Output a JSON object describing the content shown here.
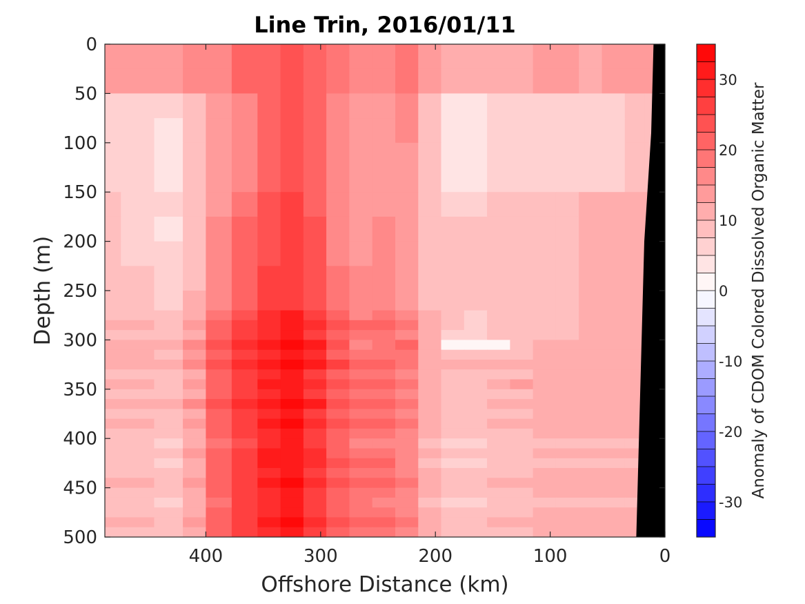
{
  "chart_data": {
    "type": "heatmap",
    "title": "Line Trin, 2016/01/11",
    "xlabel": "Offshore Distance (km)",
    "ylabel": "Depth (m)",
    "xlim": [
      488,
      0
    ],
    "ylim": [
      0,
      500
    ],
    "x_reversed": true,
    "y_reversed": true,
    "xticks": [
      400,
      300,
      200,
      100,
      0
    ],
    "yticks": [
      0,
      50,
      100,
      150,
      200,
      250,
      300,
      350,
      400,
      450,
      500
    ],
    "colorbar": {
      "label": "Anomaly of CDOM Colored Dissolved Organic Matter",
      "range": [
        -35,
        35
      ],
      "levels": 28,
      "ticks": [
        30,
        20,
        10,
        0,
        -10,
        -20,
        -30
      ],
      "colors": {
        "low": "#0000ff",
        "mid": "#ffffff",
        "high": "#ff0000"
      }
    },
    "depth_bands": [
      0,
      25,
      50,
      75,
      100,
      125,
      150,
      175,
      200,
      225,
      250,
      270,
      280,
      290,
      300,
      310,
      320,
      330,
      340,
      350,
      360,
      370,
      380,
      390,
      400,
      410,
      420,
      430,
      440,
      450,
      460,
      470,
      480,
      490,
      500
    ],
    "x_stations": [
      488,
      460,
      430,
      410,
      390,
      365,
      345,
      325,
      305,
      285,
      265,
      245,
      225,
      205,
      185,
      165,
      145,
      125,
      105,
      85,
      65,
      45,
      25,
      10
    ],
    "anomaly": [
      [
        14,
        14,
        14,
        15,
        17,
        20,
        22,
        24,
        22,
        18,
        16,
        17,
        18,
        14,
        12,
        12,
        12,
        12,
        13,
        13,
        12,
        13,
        13,
        13
      ],
      [
        14,
        14,
        14,
        15,
        17,
        20,
        22,
        24,
        22,
        18,
        16,
        17,
        18,
        14,
        12,
        12,
        12,
        12,
        13,
        13,
        12,
        13,
        13,
        13
      ],
      [
        7,
        5,
        6,
        9,
        13,
        17,
        21,
        23,
        21,
        16,
        13,
        14,
        16,
        9,
        4,
        4,
        5,
        5,
        5,
        5,
        6,
        7,
        8,
        9
      ],
      [
        7,
        5,
        4,
        9,
        13,
        17,
        21,
        24,
        21,
        16,
        13,
        14,
        15,
        8,
        3,
        4,
        5,
        5,
        5,
        5,
        6,
        7,
        8,
        9
      ],
      [
        7,
        6,
        4,
        9,
        13,
        17,
        22,
        24,
        22,
        16,
        13,
        14,
        14,
        8,
        4,
        4,
        5,
        5,
        5,
        5,
        6,
        7,
        8,
        9
      ],
      [
        7,
        6,
        4,
        9,
        13,
        17,
        22,
        24,
        22,
        16,
        13,
        14,
        14,
        8,
        4,
        4,
        5,
        5,
        5,
        5,
        6,
        7,
        8,
        9
      ],
      [
        8,
        7,
        5,
        9,
        14,
        19,
        23,
        25,
        22,
        17,
        14,
        14,
        14,
        9,
        7,
        7,
        8,
        8,
        8,
        9,
        10,
        10,
        10,
        10
      ],
      [
        8,
        7,
        4,
        9,
        15,
        20,
        24,
        27,
        23,
        17,
        14,
        15,
        14,
        9,
        8,
        8,
        8,
        8,
        9,
        9,
        10,
        10,
        10,
        10
      ],
      [
        8,
        7,
        5,
        9,
        15,
        20,
        24,
        27,
        23,
        17,
        14,
        15,
        14,
        9,
        8,
        8,
        8,
        8,
        9,
        9,
        10,
        10,
        10,
        10
      ],
      [
        8,
        8,
        5,
        9,
        16,
        21,
        25,
        27,
        23,
        18,
        15,
        15,
        14,
        9,
        8,
        8,
        8,
        8,
        9,
        9,
        10,
        10,
        10,
        10
      ],
      [
        8,
        8,
        6,
        10,
        16,
        21,
        25,
        27,
        23,
        18,
        15,
        15,
        14,
        9,
        8,
        8,
        8,
        8,
        9,
        9,
        10,
        10,
        10,
        10
      ],
      [
        9,
        9,
        8,
        12,
        19,
        24,
        28,
        30,
        26,
        20,
        17,
        18,
        16,
        10,
        8,
        7,
        8,
        8,
        8,
        9,
        10,
        10,
        10,
        10
      ],
      [
        10,
        10,
        9,
        14,
        22,
        26,
        29,
        31,
        28,
        23,
        20,
        21,
        18,
        11,
        8,
        7,
        8,
        8,
        8,
        9,
        10,
        11,
        11,
        10
      ],
      [
        9,
        9,
        8,
        12,
        20,
        25,
        28,
        30,
        27,
        21,
        18,
        18,
        16,
        10,
        7,
        7,
        8,
        8,
        8,
        9,
        10,
        10,
        10,
        10
      ],
      [
        11,
        11,
        10,
        15,
        24,
        29,
        32,
        34,
        30,
        24,
        17,
        19,
        21,
        11,
        1,
        0,
        2,
        8,
        10,
        11,
        11,
        12,
        12,
        11
      ],
      [
        10,
        10,
        9,
        13,
        21,
        26,
        29,
        31,
        28,
        22,
        18,
        19,
        18,
        11,
        8,
        8,
        9,
        9,
        10,
        10,
        11,
        11,
        11,
        10
      ],
      [
        11,
        11,
        10,
        15,
        23,
        28,
        32,
        34,
        31,
        25,
        21,
        21,
        19,
        12,
        10,
        11,
        11,
        12,
        12,
        11,
        12,
        12,
        11,
        11
      ],
      [
        9,
        9,
        8,
        12,
        20,
        25,
        28,
        30,
        27,
        21,
        18,
        18,
        16,
        10,
        8,
        8,
        9,
        9,
        10,
        10,
        11,
        10,
        10,
        10
      ],
      [
        10,
        10,
        9,
        14,
        22,
        27,
        30,
        32,
        29,
        23,
        20,
        20,
        18,
        11,
        9,
        9,
        12,
        14,
        12,
        11,
        11,
        11,
        11,
        10
      ],
      [
        9,
        9,
        8,
        12,
        20,
        25,
        28,
        30,
        27,
        21,
        18,
        18,
        16,
        10,
        8,
        8,
        9,
        9,
        10,
        10,
        10,
        10,
        10,
        10
      ],
      [
        11,
        11,
        10,
        15,
        23,
        28,
        31,
        33,
        30,
        24,
        21,
        20,
        18,
        11,
        9,
        9,
        10,
        10,
        11,
        11,
        11,
        11,
        11,
        10
      ],
      [
        9,
        9,
        8,
        12,
        20,
        25,
        28,
        30,
        27,
        21,
        18,
        18,
        16,
        10,
        8,
        8,
        9,
        9,
        10,
        10,
        10,
        10,
        10,
        10
      ],
      [
        10,
        10,
        9,
        14,
        22,
        27,
        31,
        33,
        29,
        23,
        20,
        20,
        18,
        11,
        9,
        9,
        10,
        10,
        11,
        11,
        11,
        11,
        11,
        10
      ],
      [
        9,
        9,
        8,
        12,
        20,
        25,
        28,
        30,
        27,
        21,
        18,
        18,
        16,
        10,
        8,
        8,
        9,
        9,
        10,
        10,
        10,
        10,
        10,
        10
      ],
      [
        8,
        8,
        7,
        11,
        19,
        24,
        28,
        30,
        26,
        20,
        17,
        17,
        15,
        9,
        7,
        7,
        8,
        8,
        8,
        8,
        9,
        9,
        9,
        9
      ],
      [
        9,
        9,
        8,
        13,
        21,
        26,
        30,
        32,
        28,
        22,
        19,
        19,
        17,
        10,
        8,
        8,
        9,
        9,
        10,
        10,
        10,
        10,
        10,
        10
      ],
      [
        8,
        8,
        7,
        12,
        21,
        27,
        30,
        31,
        28,
        24,
        22,
        21,
        16,
        9,
        7,
        7,
        8,
        8,
        8,
        8,
        9,
        9,
        9,
        9
      ],
      [
        9,
        9,
        8,
        12,
        20,
        25,
        29,
        31,
        27,
        21,
        18,
        18,
        16,
        10,
        8,
        8,
        9,
        9,
        10,
        10,
        10,
        10,
        10,
        10
      ],
      [
        10,
        10,
        9,
        14,
        22,
        27,
        31,
        33,
        29,
        23,
        20,
        20,
        18,
        11,
        9,
        9,
        10,
        10,
        11,
        11,
        11,
        11,
        11,
        10
      ],
      [
        9,
        9,
        8,
        12,
        20,
        25,
        28,
        30,
        27,
        21,
        18,
        18,
        16,
        10,
        8,
        8,
        9,
        9,
        10,
        10,
        10,
        10,
        10,
        10
      ],
      [
        8,
        8,
        6,
        11,
        19,
        25,
        29,
        31,
        27,
        21,
        18,
        17,
        15,
        9,
        7,
        7,
        8,
        8,
        8,
        8,
        9,
        9,
        9,
        9
      ],
      [
        9,
        9,
        8,
        12,
        20,
        25,
        28,
        30,
        27,
        21,
        18,
        18,
        16,
        10,
        8,
        8,
        9,
        9,
        10,
        10,
        10,
        10,
        10,
        10
      ],
      [
        10,
        10,
        9,
        14,
        22,
        27,
        31,
        33,
        29,
        23,
        20,
        20,
        18,
        11,
        9,
        9,
        10,
        10,
        11,
        11,
        11,
        11,
        11,
        10
      ],
      [
        9,
        9,
        8,
        12,
        20,
        25,
        29,
        31,
        27,
        21,
        18,
        18,
        16,
        10,
        8,
        8,
        9,
        9,
        10,
        10,
        10,
        10,
        10,
        10
      ]
    ],
    "bottom_profile": [
      [
        10,
        0
      ],
      [
        12,
        90
      ],
      [
        18,
        200
      ],
      [
        25,
        500
      ]
    ]
  }
}
